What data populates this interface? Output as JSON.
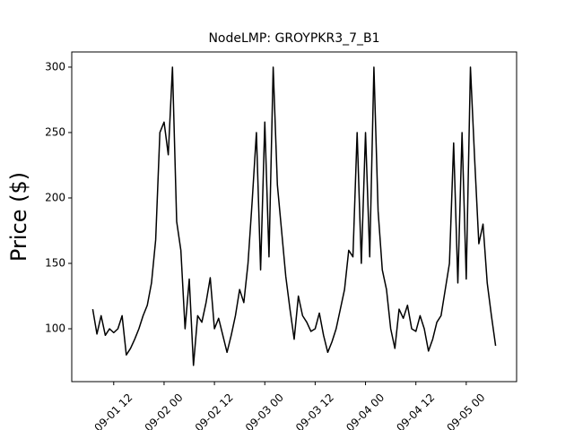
{
  "chart_data": {
    "type": "line",
    "title": "NodeLMP: GROYPKR3_7_B1",
    "y_label": "Price ($)",
    "x": [
      "09-01 07",
      "09-01 08",
      "09-01 09",
      "09-01 10",
      "09-01 11",
      "09-01 12",
      "09-01 13",
      "09-01 14",
      "09-01 15",
      "09-01 16",
      "09-01 17",
      "09-01 18",
      "09-01 19",
      "09-01 20",
      "09-01 21",
      "09-01 22",
      "09-01 23",
      "09-02 00",
      "09-02 01",
      "09-02 02",
      "09-02 03",
      "09-02 04",
      "09-02 05",
      "09-02 06",
      "09-02 07",
      "09-02 08",
      "09-02 09",
      "09-02 10",
      "09-02 11",
      "09-02 12",
      "09-02 13",
      "09-02 14",
      "09-02 15",
      "09-02 16",
      "09-02 17",
      "09-02 18",
      "09-02 19",
      "09-02 20",
      "09-02 21",
      "09-02 22",
      "09-02 23",
      "09-03 00",
      "09-03 01",
      "09-03 02",
      "09-03 03",
      "09-03 04",
      "09-03 05",
      "09-03 06",
      "09-03 07",
      "09-03 08",
      "09-03 09",
      "09-03 10",
      "09-03 11",
      "09-03 12",
      "09-03 13",
      "09-03 14",
      "09-03 15",
      "09-03 16",
      "09-03 17",
      "09-03 18",
      "09-03 19",
      "09-03 20",
      "09-03 21",
      "09-03 22",
      "09-03 23",
      "09-04 00",
      "09-04 01",
      "09-04 02",
      "09-04 03",
      "09-04 04",
      "09-04 05",
      "09-04 06",
      "09-04 07",
      "09-04 08",
      "09-04 09",
      "09-04 10",
      "09-04 11",
      "09-04 12",
      "09-04 13",
      "09-04 14",
      "09-04 15",
      "09-04 16",
      "09-04 17",
      "09-04 18",
      "09-04 19",
      "09-04 20",
      "09-04 21",
      "09-04 22",
      "09-04 23",
      "09-05 00",
      "09-05 01",
      "09-05 02",
      "09-05 03",
      "09-05 04",
      "09-05 05",
      "09-05 06",
      "09-05 07"
    ],
    "series": [
      {
        "color": "#000000",
        "values": [
          115,
          96,
          110,
          95,
          100,
          97,
          100,
          110,
          80,
          85,
          92,
          100,
          110,
          118,
          135,
          168,
          250,
          258,
          233,
          300,
          182,
          160,
          100,
          138,
          72,
          110,
          105,
          120,
          139,
          100,
          108,
          95,
          82,
          95,
          110,
          130,
          120,
          150,
          198,
          250,
          145,
          258,
          155,
          300,
          210,
          175,
          140,
          115,
          92,
          125,
          110,
          105,
          98,
          100,
          112,
          95,
          82,
          90,
          100,
          115,
          130,
          160,
          155,
          250,
          150,
          250,
          155,
          300,
          190,
          145,
          130,
          100,
          85,
          115,
          108,
          118,
          100,
          98,
          110,
          100,
          83,
          92,
          105,
          110,
          130,
          150,
          242,
          135,
          250,
          138,
          300,
          230,
          165,
          180,
          135,
          110,
          87
        ]
      }
    ],
    "xlim": [
      "09-01 02",
      "09-05 12"
    ],
    "xticks": [
      "09-01 12",
      "09-02 00",
      "09-02 12",
      "09-03 00",
      "09-03 12",
      "09-04 00",
      "09-04 12",
      "09-05 00"
    ],
    "ylim": [
      59.6,
      311.6
    ],
    "yticks": [
      100,
      150,
      200,
      250,
      300
    ]
  }
}
